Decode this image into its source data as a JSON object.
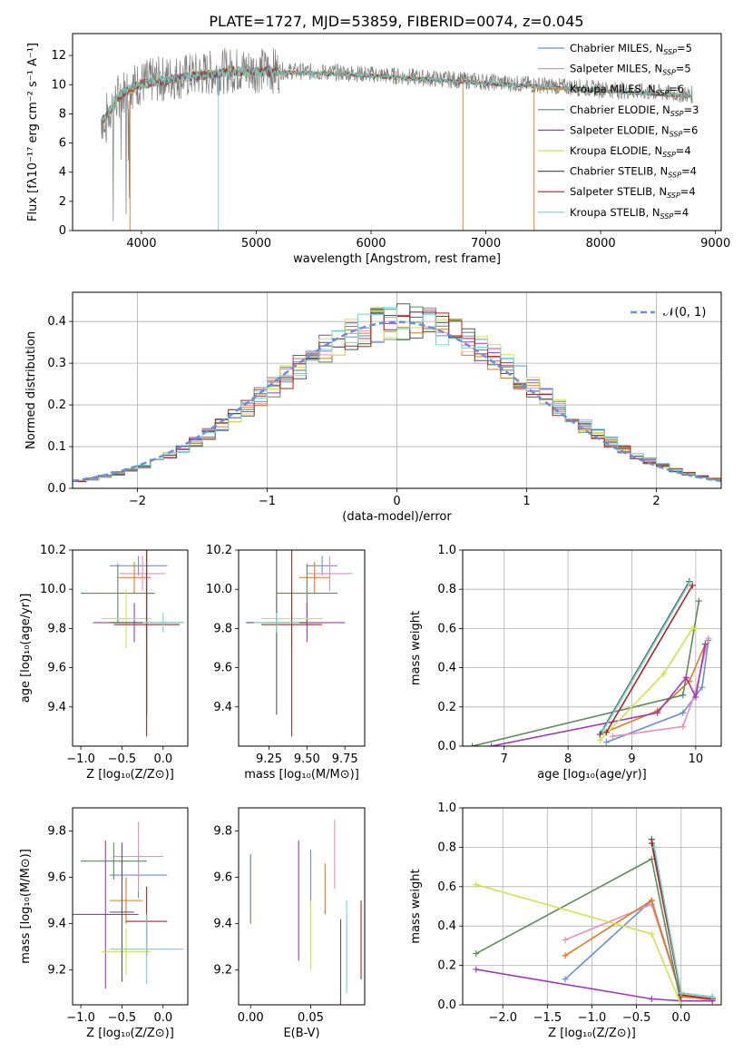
{
  "figure_title": "PLATE=1727, MJD=53859, FIBERID=0074, z=0.045",
  "models": [
    {
      "label": "Chabrier MILES, N",
      "sub": "SSP",
      "suffix": "=5",
      "color": "#6b8fd6"
    },
    {
      "label": "Salpeter MILES, N",
      "sub": "SSP",
      "suffix": "=5",
      "color": "#e58fb8"
    },
    {
      "label": "Kroupa MILES, N",
      "sub": "SSP",
      "suffix": "=6",
      "color": "#e07a22"
    },
    {
      "label": "Chabrier ELODIE, N",
      "sub": "SSP",
      "suffix": "=3",
      "color": "#5f8a5f"
    },
    {
      "label": "Salpeter ELODIE, N",
      "sub": "SSP",
      "suffix": "=6",
      "color": "#9c3bb5"
    },
    {
      "label": "Kroupa ELODIE, N",
      "sub": "SSP",
      "suffix": "=4",
      "color": "#cfe34c"
    },
    {
      "label": "Chabrier STELIB, N",
      "sub": "SSP",
      "suffix": "=4",
      "color": "#555555"
    },
    {
      "label": "Salpeter STELIB, N",
      "sub": "SSP",
      "suffix": "=4",
      "color": "#b22222"
    },
    {
      "label": "Kroupa STELIB, N",
      "sub": "SSP",
      "suffix": "=4",
      "color": "#6fd6cf"
    }
  ],
  "chart_data": [
    {
      "id": "spectrum",
      "type": "line",
      "title": "PLATE=1727, MJD=53859, FIBERID=0074, z=0.045",
      "xlabel": "wavelength [Angstrom, rest frame]",
      "ylabel": "Flux [fλ10⁻¹⁷ erg cm⁻² s⁻¹ A⁻¹]",
      "xlim": [
        3400,
        9050
      ],
      "ylim": [
        0,
        13.5
      ],
      "xticks": [
        4000,
        5000,
        6000,
        7000,
        8000,
        9000
      ],
      "yticks": [
        0,
        2,
        4,
        6,
        8,
        10,
        12
      ],
      "grid": false,
      "legend": "top-right",
      "observed_envelope": {
        "x": [
          3650,
          3700,
          3750,
          3800,
          3850,
          3900,
          3950,
          4000,
          4100,
          4200,
          4300,
          4400,
          4500,
          4600,
          4700,
          4800,
          4900,
          5000,
          5200,
          5400,
          5600,
          5800,
          6000,
          6200,
          6400,
          6600,
          6800,
          7000,
          7200,
          7400,
          7600,
          7800,
          8000,
          8200,
          8400,
          8600,
          8800
        ],
        "y": [
          7.5,
          8.0,
          8.6,
          9.2,
          9.6,
          9.8,
          10.0,
          10.1,
          10.3,
          10.4,
          10.5,
          10.6,
          10.7,
          10.8,
          10.9,
          11.0,
          11.0,
          11.0,
          10.95,
          10.9,
          10.85,
          10.8,
          10.7,
          10.6,
          10.5,
          10.4,
          10.3,
          10.2,
          10.1,
          10.0,
          9.9,
          9.8,
          9.7,
          9.6,
          9.5,
          9.4,
          9.3
        ]
      },
      "model_start": {
        "x": [
          3650,
          3700,
          3750,
          3800,
          3850
        ],
        "y": [
          7.8,
          8.2,
          8.8,
          9.3,
          9.7
        ]
      }
    },
    {
      "id": "residuals",
      "type": "histogram",
      "xlabel": "(data-model)/error",
      "ylabel": "Normed distribution",
      "xlim": [
        -2.5,
        2.5
      ],
      "ylim": [
        0,
        0.47
      ],
      "xticks": [
        -2,
        -1,
        0,
        1,
        2
      ],
      "yticks": [
        0.0,
        0.1,
        0.2,
        0.3,
        0.4
      ],
      "grid": true,
      "legend": "top-right",
      "gaussian_label": "𝒩(0, 1)",
      "gaussian_color": "#6b8fd6",
      "bin_width": 0.1
    },
    {
      "id": "age-vs-Z",
      "type": "errorbar",
      "xlabel": "Z [log₁₀(Z/Z⊙)]",
      "ylabel": "age [log₁₀(age/yr)]",
      "xlim": [
        -1.1,
        0.3
      ],
      "ylim": [
        9.2,
        10.2
      ],
      "xticks": [
        -1.0,
        -0.5,
        0.0
      ],
      "yticks": [
        9.4,
        9.6,
        9.8,
        10.0,
        10.2
      ],
      "points": [
        {
          "x": -0.3,
          "y": 10.12,
          "xerr": 0.35,
          "yerr": 0.05
        },
        {
          "x": -0.25,
          "y": 10.08,
          "xerr": 0.28,
          "yerr": 0.09
        },
        {
          "x": -0.35,
          "y": 10.06,
          "xerr": 0.2,
          "yerr": 0.08
        },
        {
          "x": -0.55,
          "y": 9.98,
          "xerr": 0.45,
          "yerr": 0.15
        },
        {
          "x": -0.35,
          "y": 9.83,
          "xerr": 0.5,
          "yerr": 0.1
        },
        {
          "x": -0.45,
          "y": 9.85,
          "xerr": 0.3,
          "yerr": 0.15
        },
        {
          "x": -0.2,
          "y": 9.83,
          "xerr": 0.45,
          "yerr": 0.47
        },
        {
          "x": -0.2,
          "y": 9.82,
          "xerr": 0.4,
          "yerr": 0.57
        },
        {
          "x": 0.0,
          "y": 9.83,
          "xerr": 0.25,
          "yerr": 0.05
        }
      ]
    },
    {
      "id": "age-vs-mass",
      "type": "errorbar",
      "xlabel": "mass [log₁₀(M/M⊙)]",
      "xlim": [
        9.05,
        9.88
      ],
      "ylim": [
        9.2,
        10.2
      ],
      "xticks": [
        9.25,
        9.5,
        9.75
      ],
      "yticks": [
        9.4,
        9.6,
        9.8,
        10.0,
        10.2
      ],
      "points": [
        {
          "x": 9.6,
          "y": 10.12,
          "xerr": 0.1,
          "yerr": 0.05
        },
        {
          "x": 9.65,
          "y": 10.08,
          "xerr": 0.15,
          "yerr": 0.09
        },
        {
          "x": 9.55,
          "y": 10.06,
          "xerr": 0.1,
          "yerr": 0.08
        },
        {
          "x": 9.5,
          "y": 9.98,
          "xerr": 0.2,
          "yerr": 0.15
        },
        {
          "x": 9.5,
          "y": 9.83,
          "xerr": 0.25,
          "yerr": 0.1
        },
        {
          "x": 9.4,
          "y": 9.85,
          "xerr": 0.2,
          "yerr": 0.15
        },
        {
          "x": 9.3,
          "y": 9.83,
          "xerr": 0.2,
          "yerr": 0.47
        },
        {
          "x": 9.4,
          "y": 9.82,
          "xerr": 0.2,
          "yerr": 0.57
        },
        {
          "x": 9.3,
          "y": 9.83,
          "xerr": 0.15,
          "yerr": 0.05
        }
      ]
    },
    {
      "id": "massweight-vs-age",
      "type": "line",
      "xlabel": "age [log₁₀(age/yr)]",
      "ylabel": "mass weight",
      "xlim": [
        6.35,
        10.4
      ],
      "ylim": [
        0,
        1.0
      ],
      "xticks": [
        7,
        8,
        9,
        10
      ],
      "yticks": [
        0.0,
        0.2,
        0.4,
        0.6,
        0.8,
        1.0
      ],
      "grid": true,
      "series": [
        {
          "x": [
            8.6,
            9.8,
            10.1,
            10.2
          ],
          "y": [
            0.02,
            0.17,
            0.3,
            0.54
          ]
        },
        {
          "x": [
            8.7,
            9.8,
            10.0,
            10.2
          ],
          "y": [
            0.05,
            0.1,
            0.28,
            0.55
          ]
        },
        {
          "x": [
            8.5,
            9.4,
            9.9,
            10.15
          ],
          "y": [
            0.06,
            0.18,
            0.33,
            0.52
          ]
        },
        {
          "x": [
            6.5,
            9.8,
            10.05
          ],
          "y": [
            0.0,
            0.26,
            0.74
          ]
        },
        {
          "x": [
            6.8,
            9.4,
            9.85,
            10.0,
            10.15
          ],
          "y": [
            0.0,
            0.17,
            0.35,
            0.25,
            0.52
          ]
        },
        {
          "x": [
            8.5,
            9.5,
            9.95,
            10.0
          ],
          "y": [
            0.03,
            0.37,
            0.6,
            0.6
          ]
        },
        {
          "x": [
            8.5,
            9.9
          ],
          "y": [
            0.06,
            0.84
          ]
        },
        {
          "x": [
            8.6,
            9.95
          ],
          "y": [
            0.07,
            0.82
          ]
        },
        {
          "x": [
            8.55,
            9.9
          ],
          "y": [
            0.08,
            0.83
          ]
        }
      ]
    },
    {
      "id": "mass-vs-Z",
      "type": "errorbar",
      "xlabel": "Z [log₁₀(Z/Z⊙)]",
      "ylabel": "mass [log₁₀(M/M⊙)]",
      "xlim": [
        -1.1,
        0.3
      ],
      "ylim": [
        9.05,
        9.9
      ],
      "xticks": [
        -1.0,
        -0.5,
        0.0
      ],
      "yticks": [
        9.2,
        9.4,
        9.6,
        9.8
      ],
      "points": [
        {
          "x": -0.3,
          "y": 9.61,
          "xerr": 0.35,
          "yerr": 0.1
        },
        {
          "x": -0.3,
          "y": 9.69,
          "xerr": 0.3,
          "yerr": 0.15
        },
        {
          "x": -0.45,
          "y": 9.5,
          "xerr": 0.2,
          "yerr": 0.1
        },
        {
          "x": -0.6,
          "y": 9.67,
          "xerr": 0.4,
          "yerr": 0.08
        },
        {
          "x": -0.7,
          "y": 9.44,
          "xerr": 0.4,
          "yerr": 0.32
        },
        {
          "x": -0.45,
          "y": 9.28,
          "xerr": 0.3,
          "yerr": 0.1
        },
        {
          "x": -0.5,
          "y": 9.45,
          "xerr": 0.15,
          "yerr": 0.3
        },
        {
          "x": -0.2,
          "y": 9.41,
          "xerr": 0.25,
          "yerr": 0.15
        },
        {
          "x": -0.2,
          "y": 9.29,
          "xerr": 0.45,
          "yerr": 0.15
        }
      ]
    },
    {
      "id": "mass-vs-EBV",
      "type": "errorbar",
      "xlabel": "E(B-V)",
      "xlim": [
        -0.01,
        0.095
      ],
      "ylim": [
        9.05,
        9.9
      ],
      "xticks": [
        0.0,
        0.05
      ],
      "yticks": [
        9.2,
        9.4,
        9.6,
        9.8
      ],
      "points": [
        {
          "x": 0.05,
          "y": 9.6,
          "yerr": 0.12
        },
        {
          "x": 0.07,
          "y": 9.7,
          "yerr": 0.15
        },
        {
          "x": 0.062,
          "y": 9.55,
          "yerr": 0.11
        },
        {
          "x": 0.0,
          "y": 9.55,
          "yerr": 0.15
        },
        {
          "x": 0.04,
          "y": 9.5,
          "yerr": 0.26
        },
        {
          "x": 0.05,
          "y": 9.35,
          "yerr": 0.15
        },
        {
          "x": 0.075,
          "y": 9.2,
          "yerr": 0.22
        },
        {
          "x": 0.092,
          "y": 9.33,
          "yerr": 0.17
        },
        {
          "x": 0.08,
          "y": 9.3,
          "yerr": 0.2
        }
      ]
    },
    {
      "id": "massweight-vs-Z",
      "type": "line",
      "xlabel": "Z [log₁₀(Z/Z⊙)]",
      "ylabel": "mass weight",
      "xlim": [
        -2.45,
        0.45
      ],
      "ylim": [
        0,
        1.0
      ],
      "xticks": [
        -2.0,
        -1.5,
        -1.0,
        -0.5,
        0.0
      ],
      "yticks": [
        0.0,
        0.2,
        0.4,
        0.6,
        0.8,
        1.0
      ],
      "grid": true,
      "series": [
        {
          "x": [
            -1.3,
            -0.33,
            0.0,
            0.35
          ],
          "y": [
            0.13,
            0.53,
            0.05,
            0.03
          ]
        },
        {
          "x": [
            -1.3,
            -0.33,
            0.0,
            0.35
          ],
          "y": [
            0.33,
            0.51,
            0.05,
            0.02
          ]
        },
        {
          "x": [
            -1.3,
            -0.33,
            0.0,
            0.35
          ],
          "y": [
            0.25,
            0.53,
            0.04,
            0.03
          ]
        },
        {
          "x": [
            -2.3,
            -0.33,
            0.0
          ],
          "y": [
            0.26,
            0.74,
            0.0
          ]
        },
        {
          "x": [
            -2.3,
            -0.33,
            0.0,
            0.35
          ],
          "y": [
            0.18,
            0.03,
            0.02,
            0.02
          ]
        },
        {
          "x": [
            -2.3,
            -0.33,
            0.0
          ],
          "y": [
            0.61,
            0.36,
            0.0
          ]
        },
        {
          "x": [
            -0.33,
            0.0,
            0.35
          ],
          "y": [
            0.84,
            0.06,
            0.04
          ]
        },
        {
          "x": [
            -0.33,
            0.0,
            0.35
          ],
          "y": [
            0.82,
            0.05,
            0.03
          ]
        },
        {
          "x": [
            -0.3,
            0.0,
            0.35
          ],
          "y": [
            0.8,
            0.06,
            0.04
          ]
        }
      ]
    }
  ]
}
